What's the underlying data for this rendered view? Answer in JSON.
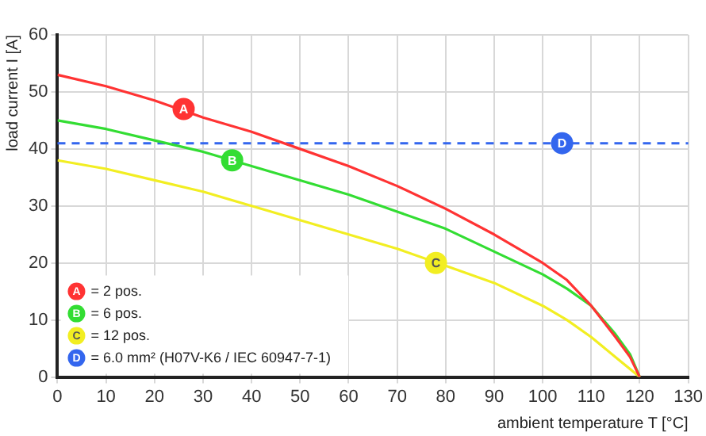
{
  "chart_data": {
    "type": "line",
    "xlabel": "ambient temperature T [°C]",
    "ylabel": "load current I [A]",
    "xlim": [
      0,
      130
    ],
    "xticks": [
      0,
      10,
      20,
      30,
      40,
      50,
      60,
      70,
      80,
      90,
      100,
      110,
      120,
      130
    ],
    "ylim": [
      0,
      60
    ],
    "yticks": [
      0,
      10,
      20,
      30,
      40,
      50,
      60
    ],
    "grid": true,
    "legend": "bottom left",
    "marker": "none",
    "line_style": "solid",
    "series": [
      {
        "name": "= 2 pos.",
        "color": "#ff3333",
        "x": [
          0,
          10,
          20,
          30,
          40,
          50,
          60,
          70,
          80,
          90,
          100,
          105,
          110,
          115,
          118,
          120
        ],
        "values": [
          53,
          51,
          48.5,
          45.5,
          43,
          40,
          37,
          33.5,
          29.5,
          25,
          20,
          17,
          12.5,
          7,
          3.5,
          0
        ]
      },
      {
        "name": "= 6 pos.",
        "color": "#33dd33",
        "x": [
          0,
          10,
          20,
          30,
          40,
          50,
          60,
          70,
          80,
          90,
          100,
          105,
          110,
          115,
          118,
          120
        ],
        "values": [
          45,
          43.5,
          41.5,
          39.5,
          37,
          34.5,
          32,
          29,
          26,
          22,
          18,
          15.5,
          12.5,
          7.5,
          4,
          0
        ]
      },
      {
        "name": "= 12 pos.",
        "color": "#f2ee22",
        "x": [
          0,
          10,
          20,
          30,
          40,
          50,
          60,
          70,
          80,
          90,
          100,
          105,
          110,
          115,
          120
        ],
        "values": [
          38,
          36.5,
          34.5,
          32.5,
          30,
          27.5,
          25,
          22.5,
          19.5,
          16.5,
          12.5,
          10,
          7,
          3.5,
          0
        ]
      }
    ],
    "ref_lines": [
      {
        "axis": "y",
        "value": 41,
        "color": "#3366ee",
        "line_style": "dashed"
      }
    ],
    "annotations": [
      {
        "text": "A",
        "x": 26,
        "y": 47
      },
      {
        "text": "B",
        "x": 36,
        "y": 38
      },
      {
        "text": "C",
        "x": 78,
        "y": 20
      },
      {
        "text": "D",
        "x": 104,
        "y": 41
      },
      "= 6.0 mm² (H07V-K6 / IEC 60947-7-1)"
    ]
  }
}
